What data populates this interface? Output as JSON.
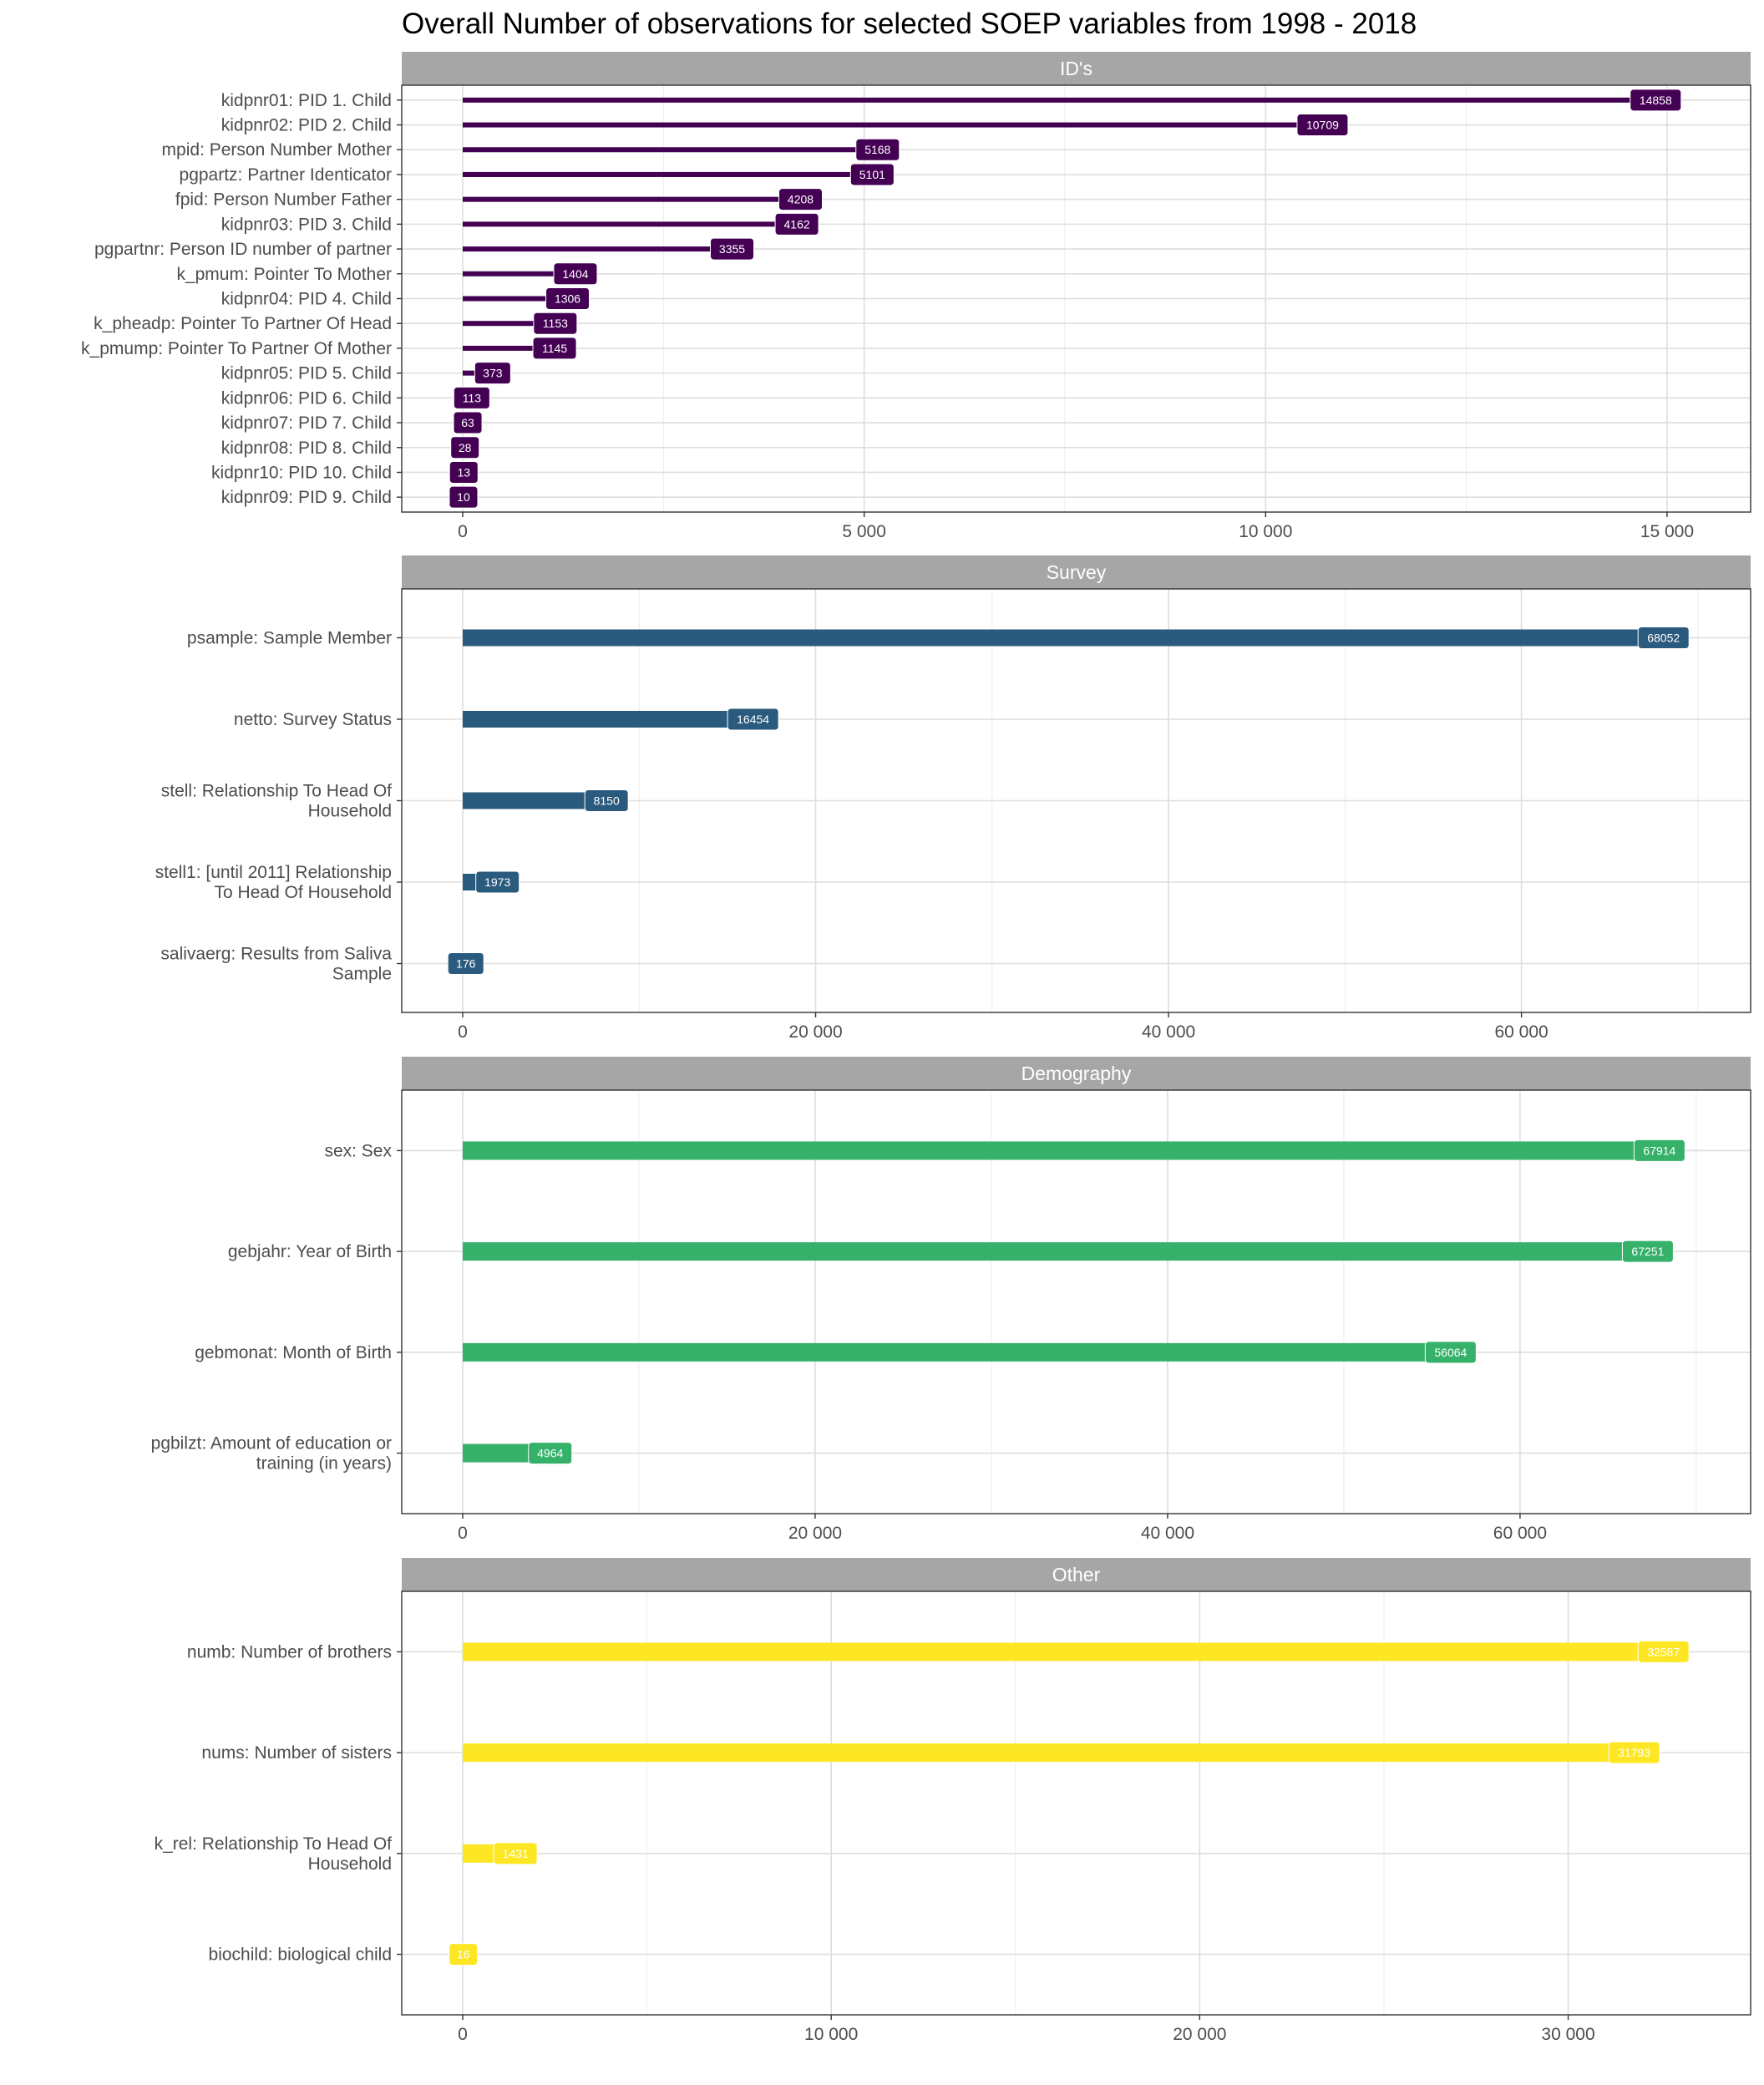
{
  "title": "Overall Number of observations for selected SOEP variables from 1998 - 2018",
  "chart_data": [
    {
      "type": "bar",
      "orientation": "horizontal",
      "facet": "ID's",
      "color": "#440154",
      "xlim": [
        0,
        15500
      ],
      "xticks": [
        0,
        5000,
        10000,
        15000
      ],
      "xtick_labels": [
        "0",
        "5 000",
        "10 000",
        "15 000"
      ],
      "categories": [
        "kidpnr01: PID 1. Child",
        "kidpnr02: PID 2. Child",
        "mpid: Person Number Mother",
        "pgpartz: Partner Identicator",
        "fpid: Person Number Father",
        "kidpnr03: PID 3. Child",
        "pgpartnr: Person ID number of partner",
        "k_pmum: Pointer To Mother",
        "kidpnr04: PID 4. Child",
        "k_pheadp: Pointer To Partner Of Head",
        "k_pmump: Pointer To Partner Of Mother",
        "kidpnr05: PID 5. Child",
        "kidpnr06: PID 6. Child",
        "kidpnr07: PID 7. Child",
        "kidpnr08: PID 8. Child",
        "kidpnr10: PID 10. Child",
        "kidpnr09: PID 9. Child"
      ],
      "values": [
        14858,
        10709,
        5168,
        5101,
        4208,
        4162,
        3355,
        1404,
        1306,
        1153,
        1145,
        373,
        113,
        63,
        28,
        13,
        10
      ],
      "grid": true,
      "legend": "none"
    },
    {
      "type": "bar",
      "orientation": "horizontal",
      "facet": "Survey",
      "color": "#2a5b7f",
      "xlim": [
        0,
        71000
      ],
      "xticks": [
        0,
        20000,
        40000,
        60000
      ],
      "xtick_labels": [
        "0",
        "20 000",
        "40 000",
        "60 000"
      ],
      "categories": [
        "psample: Sample Member",
        "netto: Survey Status",
        "stell: Relationship To Head Of Household",
        "stell1: [until 2011] Relationship To Head Of Household",
        "salivaerg: Results from Saliva Sample"
      ],
      "values": [
        68052,
        16454,
        8150,
        1973,
        176
      ],
      "grid": true,
      "legend": "none"
    },
    {
      "type": "bar",
      "orientation": "horizontal",
      "facet": "Demography",
      "color": "#35b16a",
      "xlim": [
        0,
        71000
      ],
      "xticks": [
        0,
        20000,
        40000,
        60000
      ],
      "xtick_labels": [
        "0",
        "20 000",
        "40 000",
        "60 000"
      ],
      "categories": [
        "sex: Sex",
        "gebjahr: Year of Birth",
        "gebmonat: Month of Birth",
        "pgbilzt: Amount of education or training (in years)"
      ],
      "values": [
        67914,
        67251,
        56064,
        4964
      ],
      "grid": true,
      "legend": "none"
    },
    {
      "type": "bar",
      "orientation": "horizontal",
      "facet": "Other",
      "color": "#fde725",
      "xlim": [
        0,
        34000
      ],
      "xticks": [
        0,
        10000,
        20000,
        30000
      ],
      "xtick_labels": [
        "0",
        "10 000",
        "20 000",
        "30 000"
      ],
      "categories": [
        "numb: Number of brothers",
        "nums: Number of sisters",
        "k_rel: Relationship To Head Of Household",
        "biochild: biological child"
      ],
      "values": [
        32587,
        31793,
        1431,
        16
      ],
      "grid": true,
      "legend": "none"
    }
  ]
}
